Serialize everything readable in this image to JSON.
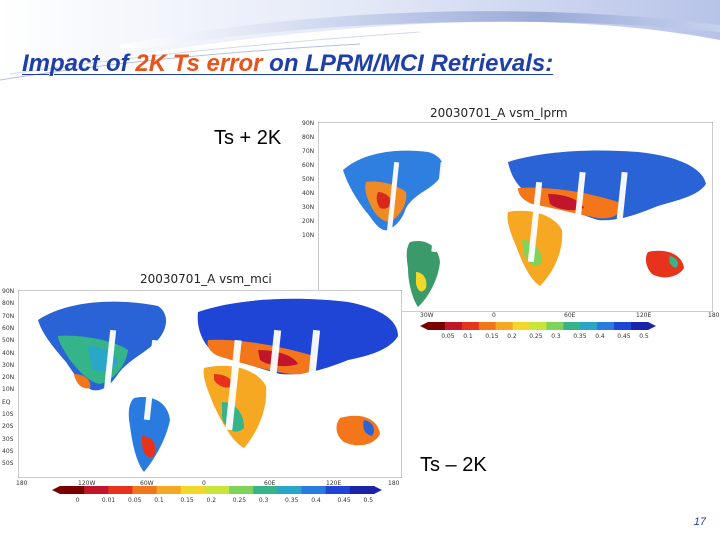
{
  "slide": {
    "title_parts": [
      "Impact of ",
      "2K Ts error",
      " on LPRM/MCI Retrievals:"
    ],
    "label_plus": "Ts + 2K",
    "label_minus": "Ts – 2K",
    "page_number": "17"
  },
  "map_lprm": {
    "title": "20030701_A     vsm_lprm",
    "y_ticks": [
      "90N",
      "80N",
      "70N",
      "60N",
      "50N",
      "40N",
      "30N",
      "20N",
      "10N"
    ],
    "x_ticks": [
      "30W",
      "0",
      "60E",
      "120E",
      "180"
    ],
    "colorbar_labels": [
      "0.05",
      "0.1",
      "0.15",
      "0.2",
      "0.25",
      "0.3",
      "0.35",
      "0.4",
      "0.45",
      "0.5"
    ]
  },
  "map_mci": {
    "title": "20030701_A     vsm_mci",
    "y_ticks": [
      "90N",
      "80N",
      "70N",
      "60N",
      "50N",
      "40N",
      "30N",
      "20N",
      "10N",
      "EQ",
      "10S",
      "20S",
      "30S",
      "40S",
      "50S"
    ],
    "x_ticks": [
      "180",
      "120W",
      "60W",
      "0",
      "60E",
      "120E",
      "180"
    ],
    "colorbar_labels": [
      "0",
      "0.01",
      "0.05",
      "0.1",
      "0.15",
      "0.2",
      "0.25",
      "0.3",
      "0.35",
      "0.4",
      "0.45",
      "0.5"
    ]
  },
  "colors": {
    "title_blue": "#1f3fa8",
    "title_orange": "#e8541b",
    "colorbar": [
      "#7a0000",
      "#c0152b",
      "#e8331c",
      "#f4761b",
      "#f7a823",
      "#f3d82a",
      "#c9e53a",
      "#7fd35a",
      "#35b48a",
      "#2aa6c9",
      "#2a7be0",
      "#1e45d6",
      "#1a24a8"
    ]
  }
}
